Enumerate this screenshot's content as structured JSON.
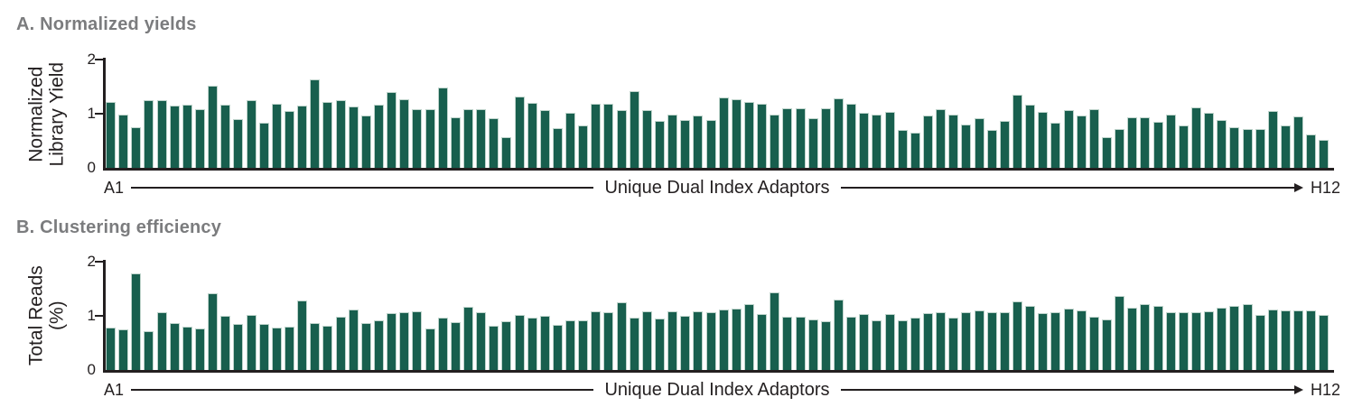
{
  "colors": {
    "bar_fill": "#185F4E",
    "bar_outline": "#bfd4cc",
    "axis": "#231f20",
    "panel_title": "#7b7c7e",
    "background": "#ffffff"
  },
  "chart_data": [
    {
      "type": "bar",
      "panel": "A",
      "title": "A. Normalized yields",
      "ylabel_lines": [
        "Normalized",
        "Library Yield"
      ],
      "ylabel": "Normalized Library Yield",
      "xlabel": "Unique Dual Index Adaptors",
      "x_start": "A1",
      "x_end": "H12",
      "ylim": [
        0,
        2
      ],
      "yticks": [
        "2",
        "1",
        "0"
      ],
      "grid": false,
      "legend": "none",
      "n_bars": 96,
      "values": [
        1.22,
        0.98,
        0.75,
        1.25,
        1.25,
        1.15,
        1.17,
        1.08,
        1.51,
        1.16,
        0.9,
        1.25,
        0.84,
        1.19,
        1.05,
        1.15,
        1.63,
        1.22,
        1.25,
        1.13,
        0.96,
        1.17,
        1.4,
        1.26,
        1.08,
        1.08,
        1.48,
        0.93,
        1.09,
        1.09,
        0.91,
        0.57,
        1.32,
        1.2,
        1.06,
        0.73,
        1.02,
        0.79,
        1.19,
        1.19,
        1.07,
        1.42,
        1.06,
        0.87,
        0.99,
        0.89,
        0.96,
        0.89,
        1.3,
        1.27,
        1.21,
        1.18,
        0.99,
        1.1,
        1.1,
        0.91,
        1.1,
        1.29,
        1.19,
        1.02,
        0.99,
        1.04,
        0.7,
        0.65,
        0.97,
        1.09,
        0.99,
        0.8,
        0.91,
        0.7,
        0.87,
        1.35,
        1.16,
        1.03,
        0.84,
        1.07,
        0.97,
        1.08,
        0.56,
        0.72,
        0.94,
        0.94,
        0.85,
        0.98,
        0.79,
        1.11,
        1.02,
        0.89,
        0.75,
        0.72,
        0.72,
        1.05,
        0.78,
        0.95,
        0.61,
        0.51
      ]
    },
    {
      "type": "bar",
      "panel": "B",
      "title": "B. Clustering efficiency",
      "ylabel_lines": [
        "Total Reads",
        "(%)"
      ],
      "ylabel": "Total Reads (%)",
      "xlabel": "Unique Dual Index Adaptors",
      "x_start": "A1",
      "x_end": "H12",
      "ylim": [
        0,
        2
      ],
      "yticks": [
        "2",
        "1",
        "0"
      ],
      "grid": false,
      "legend": "none",
      "n_bars": 96,
      "values": [
        0.79,
        0.75,
        1.79,
        0.71,
        1.07,
        0.86,
        0.8,
        0.76,
        1.41,
        1.0,
        0.85,
        1.02,
        0.85,
        0.78,
        0.8,
        1.28,
        0.86,
        0.82,
        0.98,
        1.11,
        0.87,
        0.91,
        1.05,
        1.06,
        1.09,
        0.76,
        0.97,
        0.88,
        1.17,
        1.07,
        0.82,
        0.9,
        1.01,
        0.97,
        1.0,
        0.84,
        0.92,
        0.92,
        1.09,
        1.06,
        1.25,
        0.97,
        1.09,
        0.95,
        1.09,
        1.0,
        1.09,
        1.06,
        1.11,
        1.14,
        1.22,
        1.04,
        1.43,
        0.98,
        0.98,
        0.93,
        0.9,
        1.3,
        0.98,
        1.04,
        0.91,
        1.04,
        0.91,
        0.96,
        1.05,
        1.07,
        0.97,
        1.07,
        1.1,
        1.07,
        1.07,
        1.27,
        1.19,
        1.05,
        1.07,
        1.13,
        1.1,
        0.99,
        0.93,
        1.37,
        1.15,
        1.21,
        1.18,
        1.07,
        1.07,
        1.07,
        1.08,
        1.15,
        1.18,
        1.21,
        1.02,
        1.12,
        1.1,
        1.1,
        1.1,
        1.01
      ]
    }
  ]
}
